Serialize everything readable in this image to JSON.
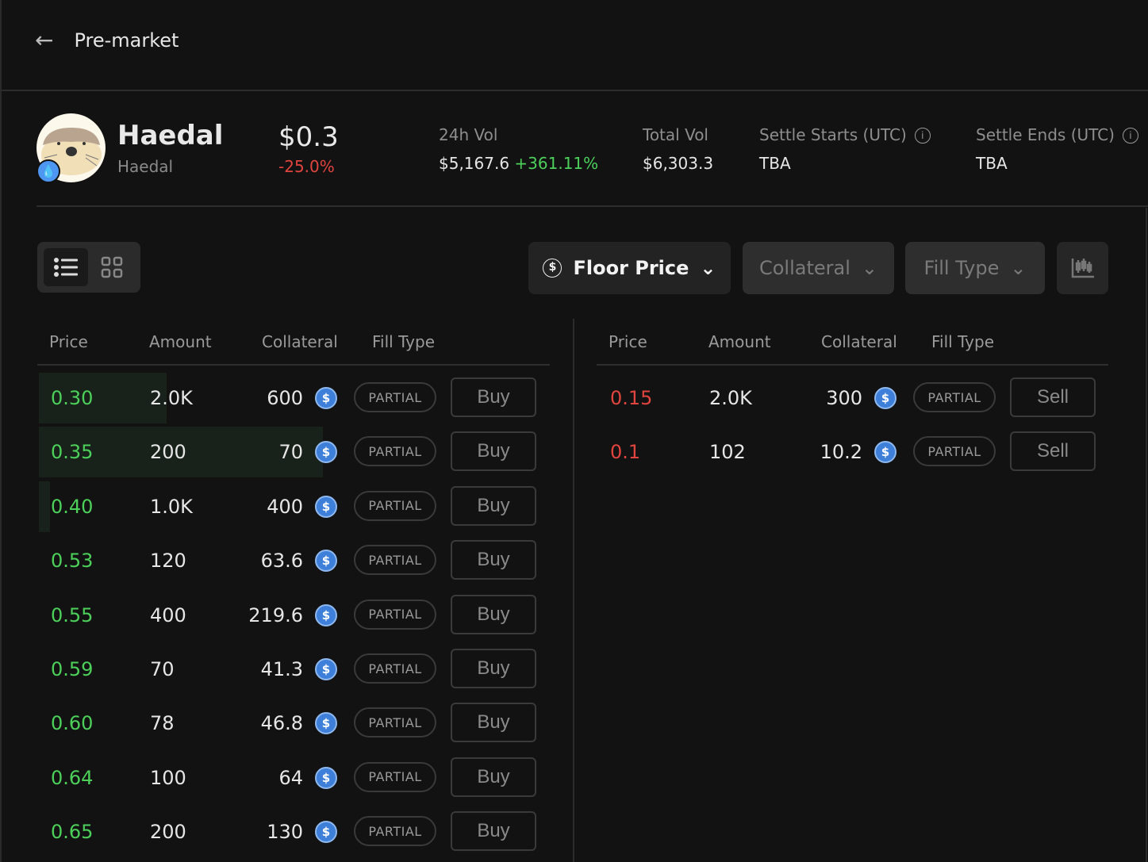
{
  "header": {
    "title": "Pre-market"
  },
  "token": {
    "name": "Haedal",
    "symbol": "Haedal",
    "price": "$0.3",
    "change": "-25.0%",
    "chain_icon": "sui-drop-icon"
  },
  "stats": {
    "vol24_label": "24h Vol",
    "vol24": "$5,167.6",
    "vol24_change": "+361.11%",
    "total_label": "Total Vol",
    "total": "$6,303.3",
    "settle_start_label": "Settle Starts (UTC)",
    "settle_start": "TBA",
    "settle_end_label": "Settle Ends (UTC)",
    "settle_end": "TBA"
  },
  "filters": {
    "floor": "Floor Price",
    "collateral": "Collateral",
    "fill": "Fill Type"
  },
  "columns": {
    "price": "Price",
    "amount": "Amount",
    "collateral": "Collateral",
    "fill": "Fill Type"
  },
  "colors": {
    "buy": "#4cd05a",
    "sell": "#e0443e",
    "usdc": "#3d7fd9",
    "bg": "#121212"
  },
  "buy_orders": [
    {
      "price": "0.30",
      "amount": "2.0K",
      "collateral": "600",
      "fill": "PARTIAL",
      "action": "Buy",
      "depth": 0.45
    },
    {
      "price": "0.35",
      "amount": "200",
      "collateral": "70",
      "fill": "PARTIAL",
      "action": "Buy",
      "depth": 1.0
    },
    {
      "price": "0.40",
      "amount": "1.0K",
      "collateral": "400",
      "fill": "PARTIAL",
      "action": "Buy",
      "depth": 0.04
    },
    {
      "price": "0.53",
      "amount": "120",
      "collateral": "63.6",
      "fill": "PARTIAL",
      "action": "Buy"
    },
    {
      "price": "0.55",
      "amount": "400",
      "collateral": "219.6",
      "fill": "PARTIAL",
      "action": "Buy"
    },
    {
      "price": "0.59",
      "amount": "70",
      "collateral": "41.3",
      "fill": "PARTIAL",
      "action": "Buy"
    },
    {
      "price": "0.60",
      "amount": "78",
      "collateral": "46.8",
      "fill": "PARTIAL",
      "action": "Buy"
    },
    {
      "price": "0.64",
      "amount": "100",
      "collateral": "64",
      "fill": "PARTIAL",
      "action": "Buy"
    },
    {
      "price": "0.65",
      "amount": "200",
      "collateral": "130",
      "fill": "PARTIAL",
      "action": "Buy"
    }
  ],
  "sell_orders": [
    {
      "price": "0.15",
      "amount": "2.0K",
      "collateral": "300",
      "fill": "PARTIAL",
      "action": "Sell"
    },
    {
      "price": "0.1",
      "amount": "102",
      "collateral": "10.2",
      "fill": "PARTIAL",
      "action": "Sell"
    }
  ]
}
